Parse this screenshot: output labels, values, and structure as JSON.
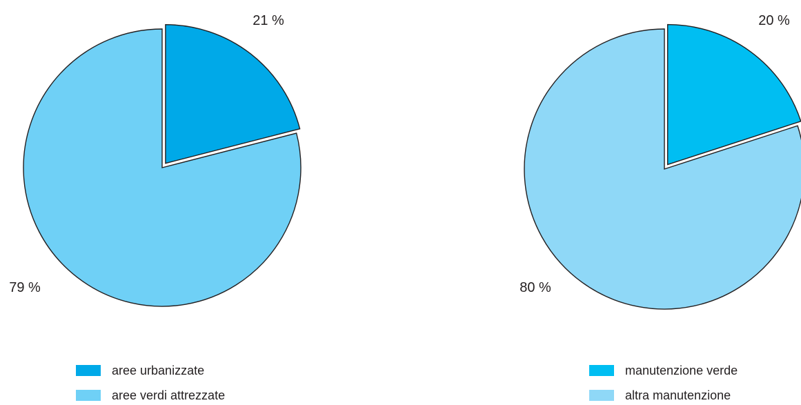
{
  "chart_data": [
    {
      "type": "pie",
      "slices": [
        {
          "label": "aree urbanizzate",
          "value": 21,
          "display": "21 %",
          "color": "#00a9e8",
          "exploded": true
        },
        {
          "label": "aree verdi attrezzate",
          "value": 79,
          "display": "79 %",
          "color": "#6fd0f6",
          "exploded": false
        }
      ]
    },
    {
      "type": "pie",
      "slices": [
        {
          "label": "manutenzione verde",
          "value": 20,
          "display": "20 %",
          "color": "#00bef2",
          "exploded": true
        },
        {
          "label": "altra manutenzione",
          "value": 80,
          "display": "80 %",
          "color": "#8fd8f7",
          "exploded": false
        }
      ]
    }
  ]
}
